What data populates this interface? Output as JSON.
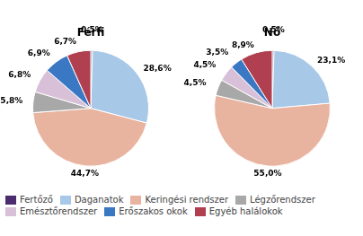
{
  "chart_data": [
    {
      "type": "pie",
      "title": "Férfi",
      "categories": [
        "Fertőző",
        "Daganatok",
        "Keringési rendszer",
        "Légzőrendszer",
        "Emésztőrendszer",
        "Erőszakos okok",
        "Egyéb halálokok"
      ],
      "values": [
        0.5,
        28.6,
        44.7,
        5.8,
        6.8,
        6.9,
        6.7
      ],
      "value_labels": [
        "0,5%",
        "28,6%",
        "44,7%",
        "5,8%",
        "6,8%",
        "6,9%",
        "6,7%"
      ],
      "colors": [
        "#4B2C6E",
        "#A8C8E8",
        "#E8B4A0",
        "#A8A8A8",
        "#D8C0D8",
        "#3B78C4",
        "#B04050"
      ],
      "data_labels": true,
      "legend": "lower left"
    },
    {
      "type": "pie",
      "title": "Nő",
      "categories": [
        "Fertőző",
        "Daganatok",
        "Keringési rendszer",
        "Légzőrendszer",
        "Emésztőrendszer",
        "Erőszakos okok",
        "Egyéb halálokok"
      ],
      "values": [
        0.5,
        23.1,
        55.0,
        4.5,
        4.5,
        3.5,
        8.9
      ],
      "value_labels": [
        "0,5%",
        "23,1%",
        "55,0%",
        "4,5%",
        "4,5%",
        "3,5%",
        "8,9%"
      ],
      "colors": [
        "#4B2C6E",
        "#A8C8E8",
        "#E8B4A0",
        "#A8A8A8",
        "#D8C0D8",
        "#3B78C4",
        "#B04050"
      ],
      "data_labels": true
    }
  ]
}
